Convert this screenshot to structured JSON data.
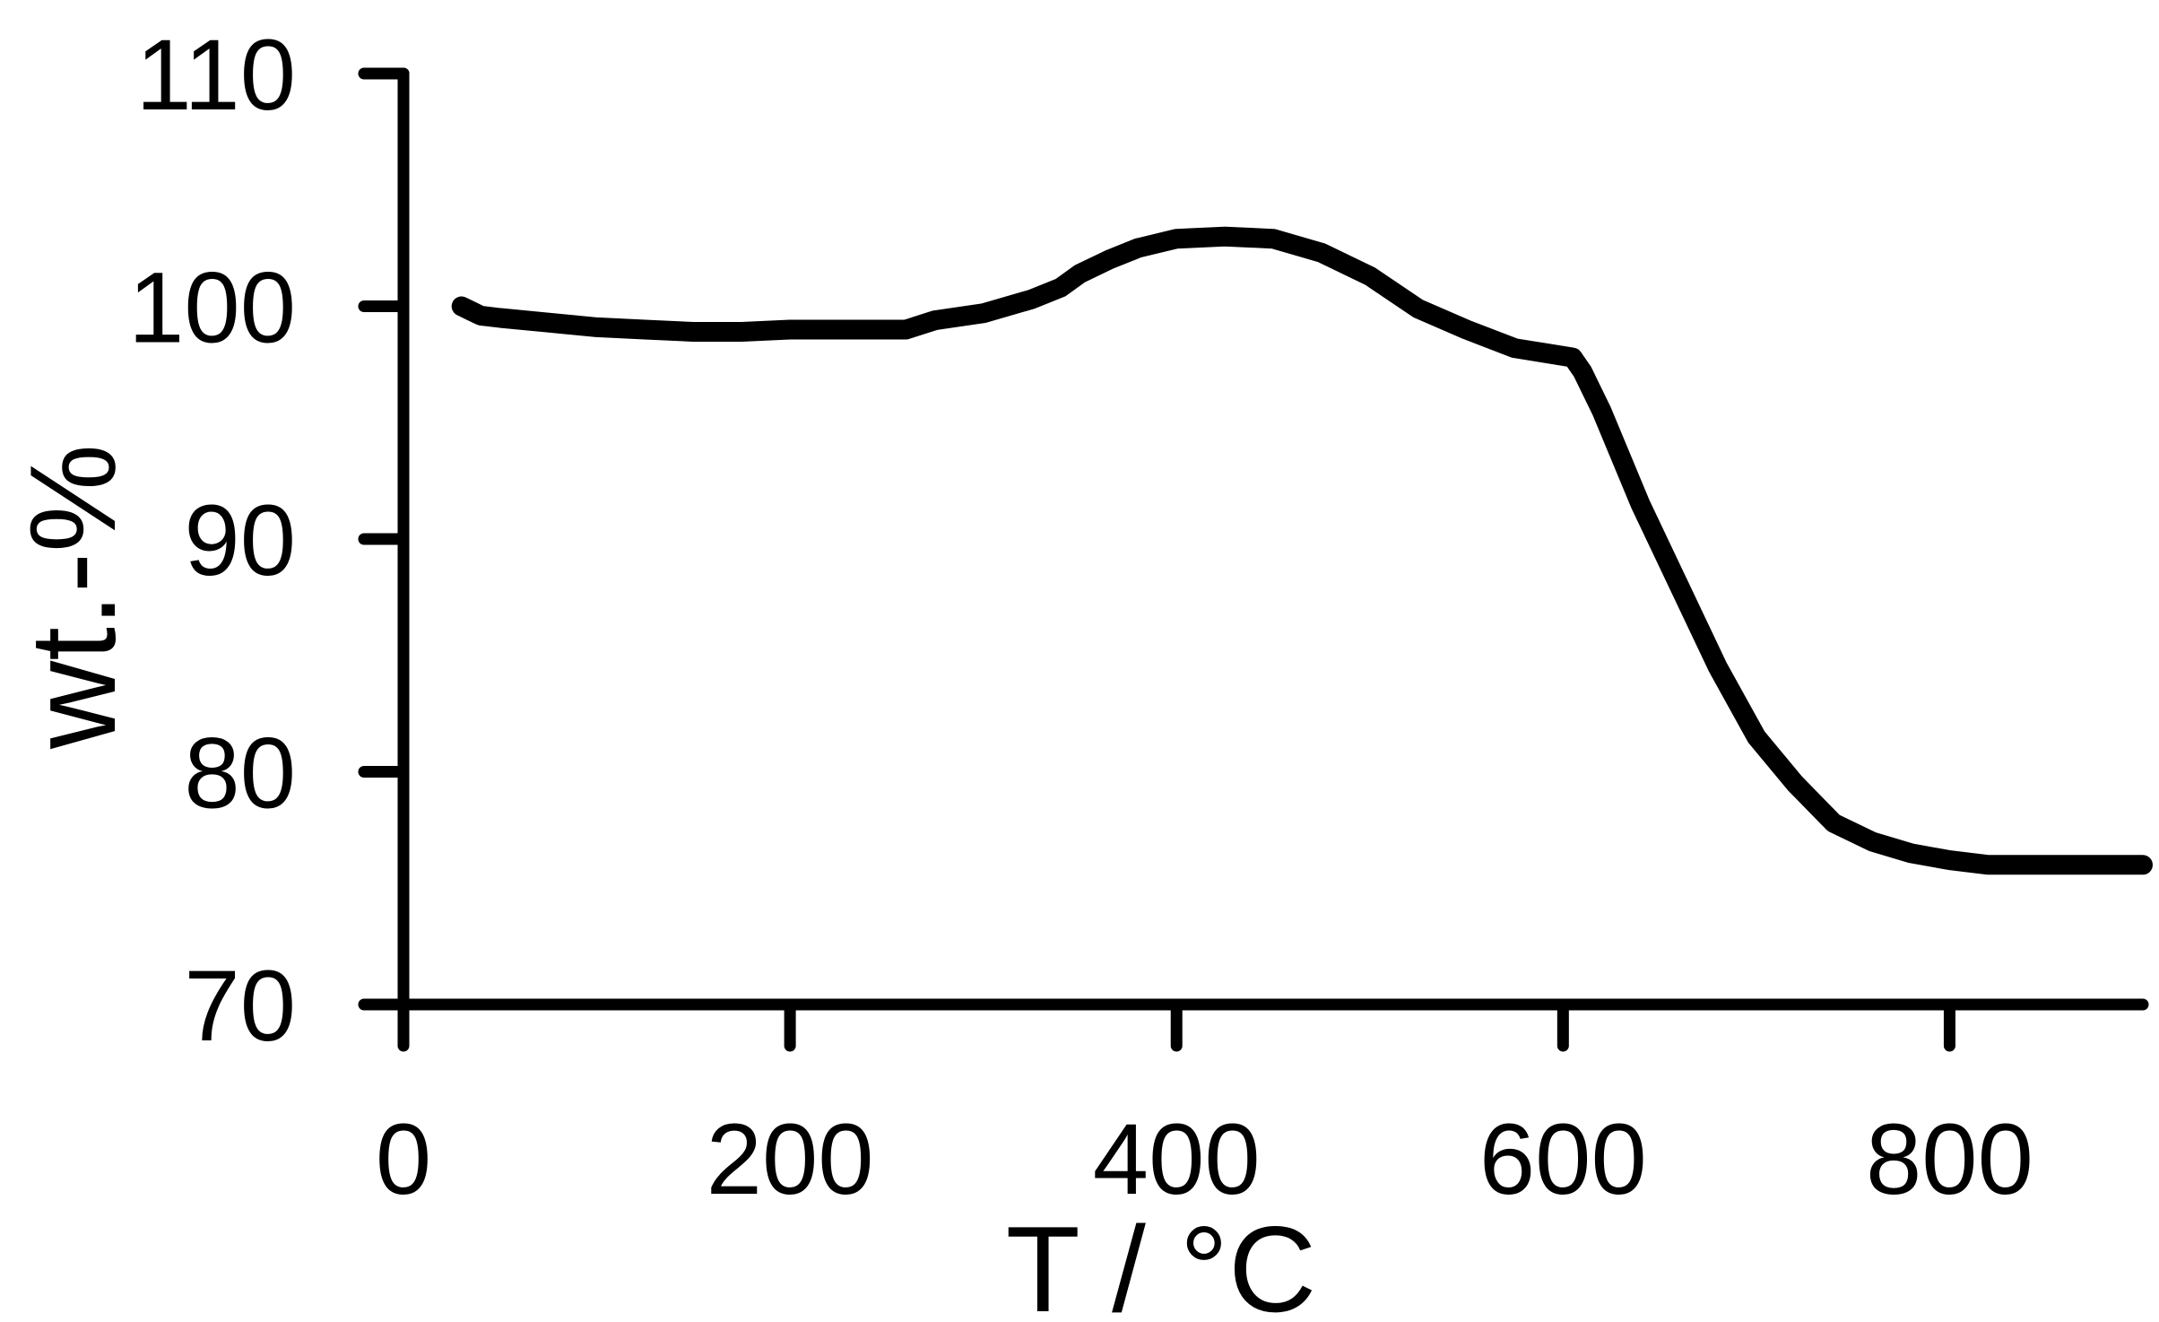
{
  "chart_data": {
    "type": "line",
    "title": "",
    "xlabel": "T / °C",
    "ylabel": "wt.-%",
    "xlim": [
      0,
      900
    ],
    "ylim": [
      70,
      110
    ],
    "x_ticks": [
      0,
      200,
      400,
      600,
      800
    ],
    "y_ticks": [
      70,
      80,
      90,
      100,
      110
    ],
    "grid": false,
    "legend": "none",
    "line_color": "#000000",
    "series": [
      {
        "x": [
          30,
          35,
          40,
          50,
          75,
          100,
          125,
          150,
          175,
          200,
          225,
          250,
          260,
          275,
          300,
          325,
          340,
          350,
          365,
          380,
          400,
          425,
          450,
          475,
          500,
          525,
          550,
          575,
          590,
          605,
          610,
          620,
          640,
          660,
          680,
          700,
          720,
          740,
          760,
          780,
          800,
          820,
          840,
          860,
          880,
          900
        ],
        "y": [
          100.0,
          99.8,
          99.6,
          99.5,
          99.3,
          99.1,
          99.0,
          98.9,
          98.9,
          99.0,
          99.0,
          99.0,
          99.0,
          99.4,
          99.7,
          100.3,
          100.8,
          101.4,
          102.0,
          102.5,
          102.9,
          103.0,
          102.9,
          102.3,
          101.3,
          99.9,
          99.0,
          98.2,
          98.0,
          97.8,
          97.2,
          95.5,
          91.5,
          88.0,
          84.5,
          81.5,
          79.5,
          77.8,
          77.0,
          76.5,
          76.2,
          76.0,
          76.0,
          76.0,
          76.0,
          76.0
        ]
      }
    ]
  }
}
